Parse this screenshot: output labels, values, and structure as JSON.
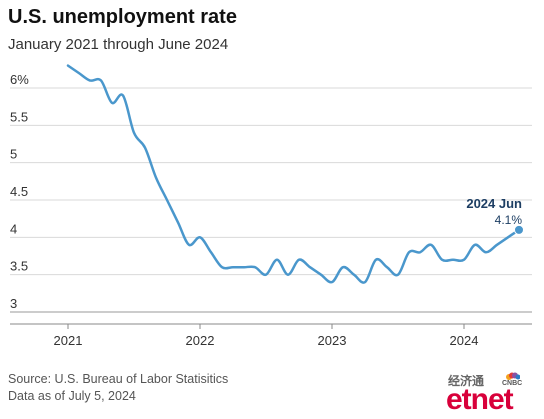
{
  "title": "U.S. unemployment rate",
  "subtitle": "January 2021 through June 2024",
  "source": "Source: U.S. Bureau of Labor Statisitics",
  "data_note": "Data as of July 5, 2024",
  "watermark": {
    "cn_text": "经济通",
    "brand": "etnet",
    "partner": "CNBC"
  },
  "colors": {
    "line": "#4a97cc",
    "annotation": "#1d3e63",
    "grid": "#d9d9d9",
    "axis_text": "#333333"
  },
  "chart_data": {
    "type": "line",
    "title": "U.S. unemployment rate",
    "subtitle": "January 2021 through June 2024",
    "x_unit": "month",
    "x_start": "2021-01",
    "xticks": [
      "2021",
      "2022",
      "2023",
      "2024"
    ],
    "yticks": [
      "3",
      "3.5",
      "4",
      "4.5",
      "5",
      "5.5",
      "6%"
    ],
    "ylim": [
      3,
      6.2
    ],
    "grid": "horizontal",
    "annotation": {
      "label": "2024 Jun",
      "value_label": "4.1%"
    },
    "series": [
      {
        "values": [
          6.3,
          6.2,
          6.1,
          6.1,
          5.8,
          5.9,
          5.4,
          5.2,
          4.8,
          4.5,
          4.2,
          3.9,
          4.0,
          3.8,
          3.6,
          3.6,
          3.6,
          3.6,
          3.5,
          3.7,
          3.5,
          3.7,
          3.6,
          3.5,
          3.4,
          3.6,
          3.5,
          3.4,
          3.7,
          3.6,
          3.5,
          3.8,
          3.8,
          3.9,
          3.7,
          3.7,
          3.7,
          3.9,
          3.8,
          3.9,
          4.0,
          4.1
        ]
      }
    ]
  }
}
